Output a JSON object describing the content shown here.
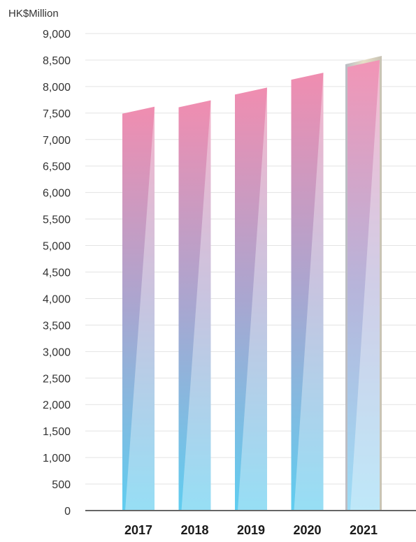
{
  "chart_data": {
    "type": "bar",
    "unit_label": "HK$Million",
    "categories": [
      "2017",
      "2018",
      "2019",
      "2020",
      "2021"
    ],
    "values": [
      7620,
      7740,
      7980,
      8260,
      8500
    ],
    "ylim": [
      0,
      9000
    ],
    "y_ticks": [
      {
        "value": 0,
        "label": "0"
      },
      {
        "value": 500,
        "label": "500"
      },
      {
        "value": 1000,
        "label": "1,000"
      },
      {
        "value": 1500,
        "label": "1,500"
      },
      {
        "value": 2000,
        "label": "2,000"
      },
      {
        "value": 2500,
        "label": "2,500"
      },
      {
        "value": 3000,
        "label": "3,000"
      },
      {
        "value": 3500,
        "label": "3,500"
      },
      {
        "value": 4000,
        "label": "4,000"
      },
      {
        "value": 4500,
        "label": "4,500"
      },
      {
        "value": 5000,
        "label": "5,000"
      },
      {
        "value": 5500,
        "label": "5,500"
      },
      {
        "value": 6000,
        "label": "6,000"
      },
      {
        "value": 6500,
        "label": "6,500"
      },
      {
        "value": 7000,
        "label": "7,000"
      },
      {
        "value": 7500,
        "label": "7,500"
      },
      {
        "value": 8000,
        "label": "8,000"
      },
      {
        "value": 8500,
        "label": "8,500"
      },
      {
        "value": 9000,
        "label": "9,000"
      }
    ],
    "grid": true,
    "highlighted_category": "2021",
    "colors": {
      "bar_top": "#f08db0",
      "bar_mid": "#a9a6d0",
      "bar_bottom": "#5fcdf0",
      "highlight_frame": "#c8c2b4",
      "grid": "#e3e3e3",
      "axis": "#666666"
    }
  }
}
